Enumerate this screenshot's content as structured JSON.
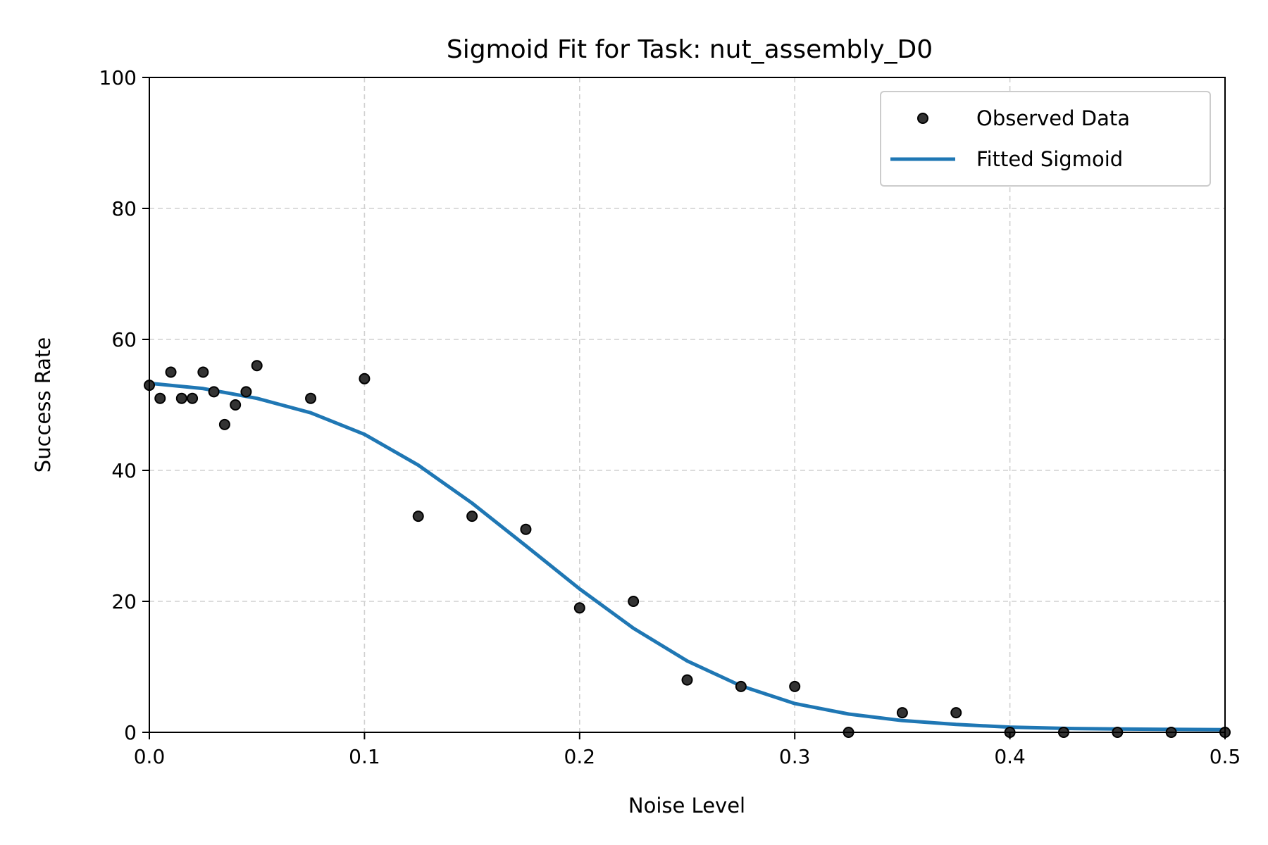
{
  "chart_data": {
    "type": "scatter",
    "title": "Sigmoid Fit for Task: nut_assembly_D0",
    "xlabel": "Noise Level",
    "ylabel": "Success Rate",
    "xlim": [
      0.0,
      0.5
    ],
    "ylim": [
      0,
      100
    ],
    "x_ticks": [
      "0.0",
      "0.1",
      "0.2",
      "0.3",
      "0.4",
      "0.5"
    ],
    "y_ticks": [
      "0",
      "20",
      "40",
      "60",
      "80",
      "100"
    ],
    "grid": true,
    "legend_position": "top-right",
    "colors": {
      "observed": "#333333",
      "fit": "#1f77b4"
    },
    "series": [
      {
        "name": "Observed Data",
        "kind": "scatter",
        "x": [
          0.0,
          0.005,
          0.01,
          0.015,
          0.02,
          0.025,
          0.03,
          0.035,
          0.04,
          0.045,
          0.05,
          0.075,
          0.1,
          0.125,
          0.15,
          0.175,
          0.2,
          0.225,
          0.25,
          0.275,
          0.3,
          0.325,
          0.35,
          0.375,
          0.4,
          0.425,
          0.45,
          0.475,
          0.5
        ],
        "y": [
          53,
          51,
          55,
          51,
          51,
          55,
          52,
          47,
          50,
          52,
          56,
          51,
          54,
          33,
          33,
          31,
          19,
          20,
          8,
          7,
          7,
          0,
          3,
          3,
          0,
          0,
          0,
          0,
          0
        ]
      },
      {
        "name": "Fitted Sigmoid",
        "kind": "line",
        "x": [
          0.0,
          0.025,
          0.05,
          0.075,
          0.1,
          0.125,
          0.15,
          0.175,
          0.2,
          0.225,
          0.25,
          0.275,
          0.3,
          0.325,
          0.35,
          0.375,
          0.4,
          0.425,
          0.45,
          0.475,
          0.5
        ],
        "y": [
          53.3,
          52.5,
          51.0,
          48.8,
          45.5,
          40.8,
          35.0,
          28.5,
          21.9,
          15.9,
          10.9,
          7.1,
          4.4,
          2.8,
          1.8,
          1.2,
          0.8,
          0.6,
          0.5,
          0.45,
          0.4
        ]
      }
    ]
  }
}
